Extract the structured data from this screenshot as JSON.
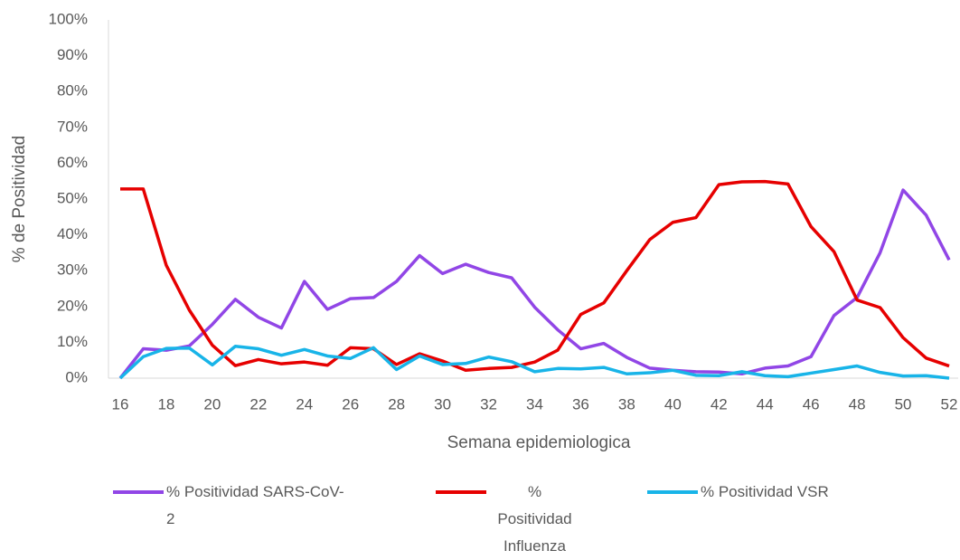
{
  "chart_data": {
    "type": "line",
    "x_label": "Semana epidemiologica",
    "y_label": "% de Positividad",
    "x": [
      16,
      17,
      18,
      19,
      20,
      21,
      22,
      23,
      24,
      25,
      26,
      27,
      28,
      29,
      30,
      31,
      32,
      33,
      34,
      35,
      36,
      37,
      38,
      39,
      40,
      41,
      42,
      43,
      44,
      45,
      46,
      47,
      48,
      49,
      50,
      51,
      52
    ],
    "xlim": [
      16,
      52
    ],
    "xticks": [
      16,
      18,
      20,
      22,
      24,
      26,
      28,
      30,
      32,
      34,
      36,
      38,
      40,
      42,
      44,
      46,
      48,
      50,
      52
    ],
    "ylim": [
      0,
      100
    ],
    "yticks": [
      {
        "value": 0,
        "label": "0%"
      },
      {
        "value": 10,
        "label": "10%"
      },
      {
        "value": 20,
        "label": "20%"
      },
      {
        "value": 30,
        "label": "30%"
      },
      {
        "value": 40,
        "label": "40%"
      },
      {
        "value": 50,
        "label": "50%"
      },
      {
        "value": 60,
        "label": "60%"
      },
      {
        "value": 70,
        "label": "70%"
      },
      {
        "value": 80,
        "label": "80%"
      },
      {
        "value": 90,
        "label": "90%"
      },
      {
        "value": 100,
        "label": "100%"
      }
    ],
    "grid": false,
    "legend": "bottom",
    "series": [
      {
        "name": "% Positividad SARS-CoV-2",
        "color": "#9146e6",
        "values": [
          0,
          8.2,
          7.8,
          9,
          15,
          22,
          17,
          14,
          27,
          19.2,
          22.2,
          22.5,
          27,
          34.2,
          29.2,
          31.8,
          29.5,
          28,
          19.8,
          13.5,
          8.2,
          9.7,
          5.8,
          2.8,
          2.2,
          1.8,
          1.7,
          1.2,
          2.8,
          3.4,
          6,
          17.5,
          22.5,
          35,
          52.5,
          45.5,
          33
        ]
      },
      {
        "name": "% Positividad Influenza",
        "color": "#e60000",
        "values": [
          52.8,
          52.8,
          31.5,
          19,
          9.2,
          3.5,
          5.2,
          4,
          4.5,
          3.6,
          8.5,
          8.2,
          3.8,
          6.8,
          4.8,
          2.2,
          2.7,
          3,
          4.5,
          7.8,
          17.8,
          21,
          30,
          38.7,
          43.5,
          44.8,
          54,
          54.8,
          54.9,
          54.2,
          42.3,
          35.3,
          21.8,
          19.7,
          11.3,
          5.6,
          3.4
        ]
      },
      {
        "name": "% Positividad VSR",
        "color": "#18b4e8",
        "values": [
          0,
          6,
          8.3,
          8.4,
          3.7,
          8.9,
          8.2,
          6.4,
          8,
          6.2,
          5.5,
          8.5,
          2.4,
          6.2,
          3.8,
          4.1,
          5.9,
          4.6,
          1.8,
          2.7,
          2.6,
          3,
          1.2,
          1.5,
          2.2,
          0.8,
          0.7,
          1.8,
          0.7,
          0.4,
          1.4,
          2.4,
          3.4,
          1.6,
          0.6,
          0.7,
          0
        ]
      }
    ]
  }
}
